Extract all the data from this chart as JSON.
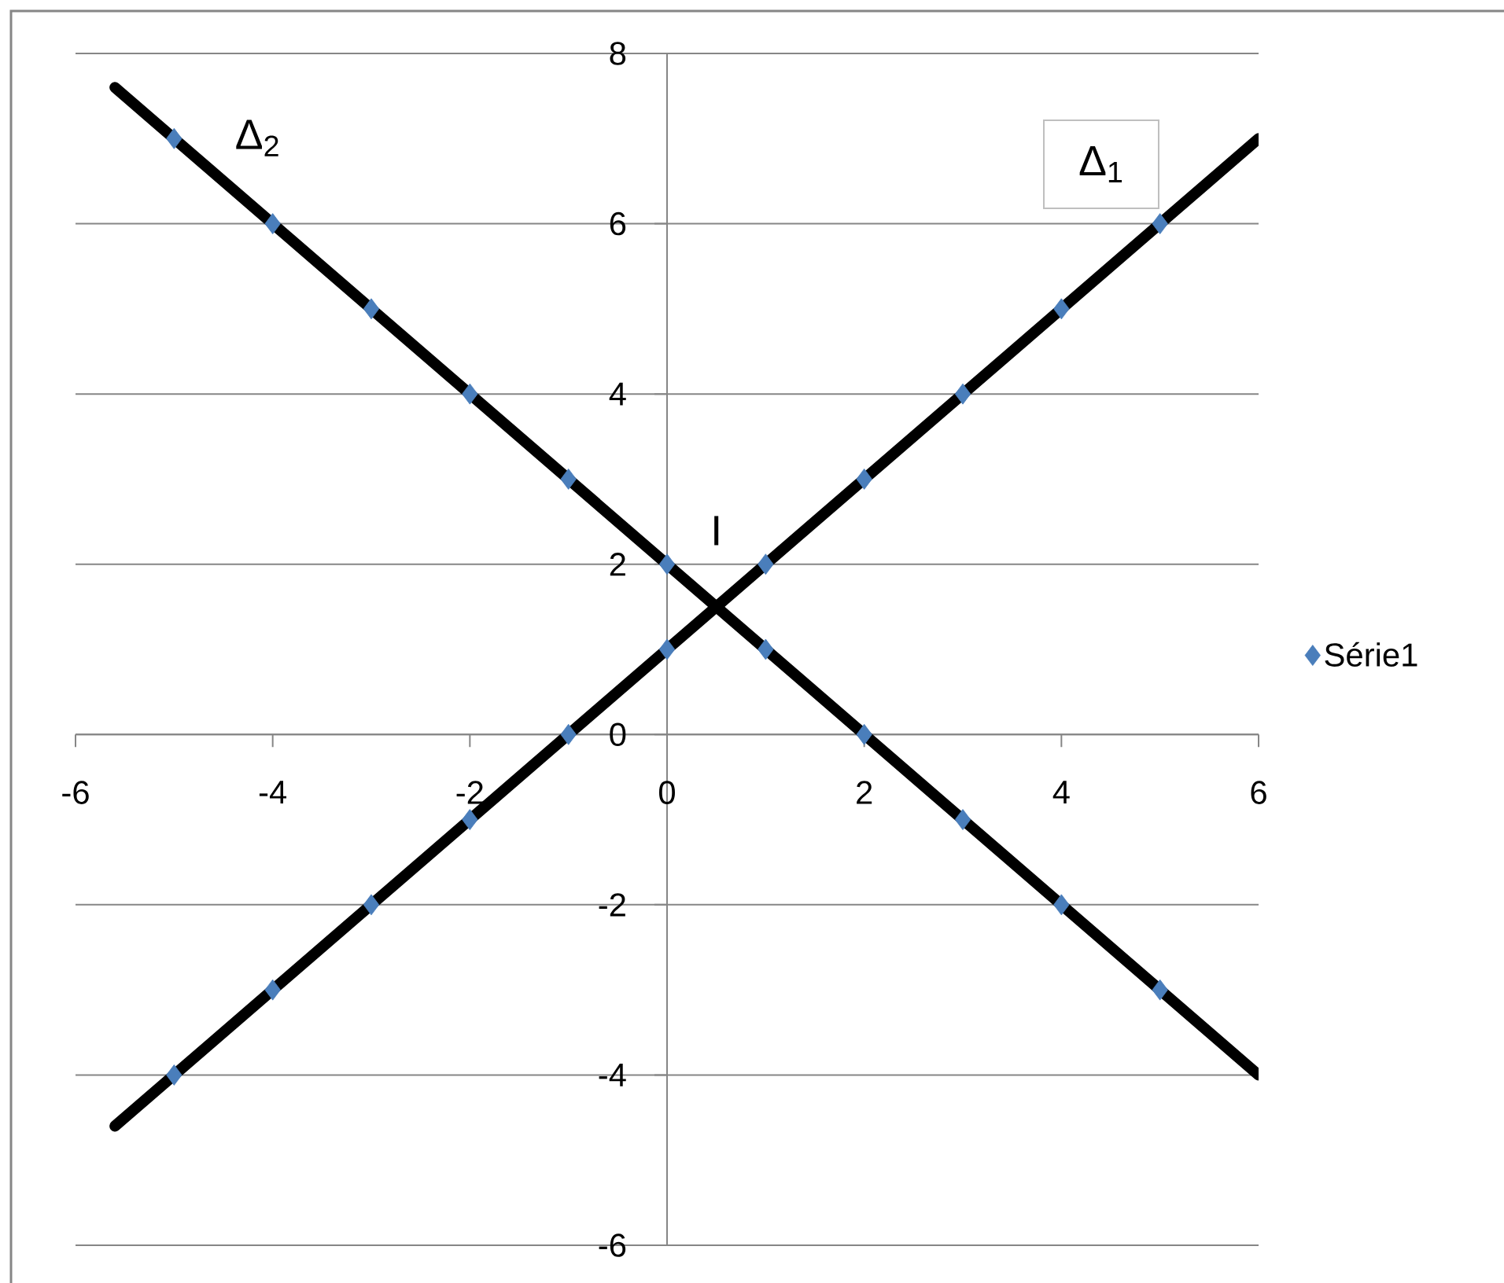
{
  "chart_data": {
    "type": "scatter",
    "series": [
      {
        "name": "Série1",
        "color": "#4a7ebb",
        "x": [
          -5,
          -4,
          -3,
          -2,
          -1,
          0,
          1,
          2,
          3,
          4,
          5,
          -5,
          -4,
          -3,
          -2,
          -1,
          0,
          1,
          2,
          3,
          4,
          5
        ],
        "values": [
          -4,
          -3,
          -2,
          -1,
          0,
          1,
          2,
          3,
          4,
          5,
          6,
          7,
          6,
          5,
          4,
          3,
          2,
          1,
          0,
          -1,
          -2,
          -3
        ]
      },
      {
        "type": "line",
        "color": "#000000",
        "marker": "none",
        "x": [
          -5.6,
          6
        ],
        "values": [
          -4.6,
          7
        ]
      },
      {
        "type": "line",
        "color": "#000000",
        "marker": "none",
        "x": [
          -5.6,
          6
        ],
        "values": [
          7.6,
          -4
        ]
      }
    ],
    "xlim": [
      -6,
      6
    ],
    "ylim": [
      -6,
      8
    ],
    "xticks": [
      -6,
      -4,
      -2,
      0,
      2,
      4,
      6
    ],
    "yticks": [
      -6,
      -4,
      -2,
      0,
      2,
      4,
      6,
      8
    ],
    "grid": "y",
    "legend": "right",
    "marker": "diamond",
    "annotations": [
      {
        "text": "I",
        "x": 0.5,
        "y": 1.5
      },
      "Δ$_{1}$",
      "Δ$_{2}$"
    ]
  }
}
